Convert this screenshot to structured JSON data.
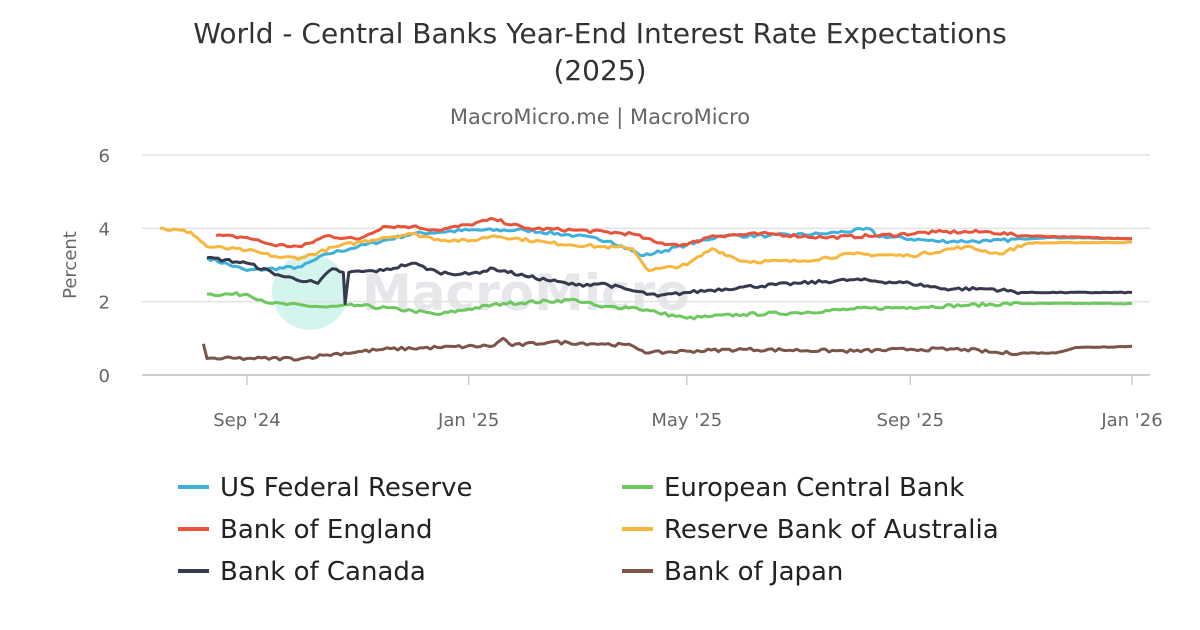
{
  "chart_data": {
    "type": "line",
    "title_line1": "World - Central Banks Year-End Interest Rate Expectations",
    "title_line2": "(2025)",
    "subtitle": "MacroMicro.me | MacroMicro",
    "watermark": "MacroMicro",
    "xlabel": "",
    "ylabel": "Percent",
    "ylim": [
      0,
      6
    ],
    "yticks": [
      0,
      2,
      4,
      6
    ],
    "xlim": [
      "2024-07-10",
      "2026-01-12"
    ],
    "xticks": [
      {
        "date": "2024-09-01",
        "label": "Sep '24"
      },
      {
        "date": "2025-01-01",
        "label": "Jan '25"
      },
      {
        "date": "2025-05-01",
        "label": "May '25"
      },
      {
        "date": "2025-09-01",
        "label": "Sep '25"
      },
      {
        "date": "2026-01-01",
        "label": "Jan '26"
      }
    ],
    "grid": true,
    "legend_position": "bottom",
    "series": [
      {
        "name": "US Federal Reserve",
        "color": "#3fb0dc",
        "points": [
          [
            "2024-08-10",
            3.2
          ],
          [
            "2024-09-01",
            2.85
          ],
          [
            "2024-10-01",
            2.95
          ],
          [
            "2024-10-15",
            3.3
          ],
          [
            "2024-11-01",
            3.5
          ],
          [
            "2024-12-01",
            3.85
          ],
          [
            "2025-01-01",
            3.95
          ],
          [
            "2025-02-01",
            3.95
          ],
          [
            "2025-03-01",
            3.8
          ],
          [
            "2025-03-20",
            3.65
          ],
          [
            "2025-04-07",
            3.25
          ],
          [
            "2025-05-01",
            3.55
          ],
          [
            "2025-05-20",
            3.8
          ],
          [
            "2025-06-15",
            3.8
          ],
          [
            "2025-07-15",
            3.85
          ],
          [
            "2025-08-10",
            3.98
          ],
          [
            "2025-08-13",
            3.8
          ],
          [
            "2025-09-15",
            3.65
          ],
          [
            "2025-10-15",
            3.65
          ],
          [
            "2025-11-15",
            3.75
          ],
          [
            "2026-01-01",
            3.72
          ]
        ]
      },
      {
        "name": "European Central Bank",
        "color": "#6cc95d",
        "points": [
          [
            "2024-08-10",
            2.2
          ],
          [
            "2024-09-01",
            2.2
          ],
          [
            "2024-09-15",
            1.95
          ],
          [
            "2024-10-15",
            1.85
          ],
          [
            "2024-11-01",
            1.9
          ],
          [
            "2024-12-01",
            1.75
          ],
          [
            "2024-12-15",
            1.65
          ],
          [
            "2025-01-01",
            1.8
          ],
          [
            "2025-01-20",
            1.95
          ],
          [
            "2025-03-01",
            2.05
          ],
          [
            "2025-03-15",
            1.85
          ],
          [
            "2025-04-01",
            1.85
          ],
          [
            "2025-04-15",
            1.7
          ],
          [
            "2025-05-01",
            1.55
          ],
          [
            "2025-05-15",
            1.6
          ],
          [
            "2025-06-01",
            1.65
          ],
          [
            "2025-07-01",
            1.7
          ],
          [
            "2025-08-01",
            1.8
          ],
          [
            "2025-09-01",
            1.85
          ],
          [
            "2025-10-01",
            1.9
          ],
          [
            "2025-11-01",
            1.95
          ],
          [
            "2026-01-01",
            1.95
          ]
        ]
      },
      {
        "name": "Bank of England",
        "color": "#e9533b",
        "points": [
          [
            "2024-08-15",
            3.8
          ],
          [
            "2024-09-01",
            3.75
          ],
          [
            "2024-09-15",
            3.55
          ],
          [
            "2024-10-01",
            3.5
          ],
          [
            "2024-10-15",
            3.8
          ],
          [
            "2024-11-01",
            3.7
          ],
          [
            "2024-11-15",
            4.05
          ],
          [
            "2024-12-01",
            4.05
          ],
          [
            "2024-12-15",
            3.95
          ],
          [
            "2025-01-01",
            4.1
          ],
          [
            "2025-01-15",
            4.25
          ],
          [
            "2025-02-01",
            4.0
          ],
          [
            "2025-03-01",
            3.95
          ],
          [
            "2025-04-01",
            3.85
          ],
          [
            "2025-04-15",
            3.6
          ],
          [
            "2025-05-01",
            3.55
          ],
          [
            "2025-05-15",
            3.8
          ],
          [
            "2025-06-15",
            3.85
          ],
          [
            "2025-07-15",
            3.75
          ],
          [
            "2025-08-15",
            3.8
          ],
          [
            "2025-09-15",
            3.9
          ],
          [
            "2025-10-15",
            3.9
          ],
          [
            "2025-11-01",
            3.8
          ],
          [
            "2026-01-01",
            3.72
          ]
        ]
      },
      {
        "name": "Reserve Bank of Australia",
        "color": "#f7b73e",
        "points": [
          [
            "2024-07-15",
            4.0
          ],
          [
            "2024-08-01",
            3.9
          ],
          [
            "2024-08-10",
            3.5
          ],
          [
            "2024-09-01",
            3.4
          ],
          [
            "2024-09-20",
            3.2
          ],
          [
            "2024-10-01",
            3.2
          ],
          [
            "2024-10-20",
            3.5
          ],
          [
            "2024-11-15",
            3.75
          ],
          [
            "2024-12-01",
            3.85
          ],
          [
            "2024-12-15",
            3.7
          ],
          [
            "2025-01-01",
            3.65
          ],
          [
            "2025-01-15",
            3.8
          ],
          [
            "2025-02-15",
            3.6
          ],
          [
            "2025-03-15",
            3.5
          ],
          [
            "2025-04-01",
            3.45
          ],
          [
            "2025-04-10",
            2.85
          ],
          [
            "2025-05-01",
            3.0
          ],
          [
            "2025-05-15",
            3.45
          ],
          [
            "2025-06-01",
            3.1
          ],
          [
            "2025-07-01",
            3.1
          ],
          [
            "2025-08-01",
            3.3
          ],
          [
            "2025-09-01",
            3.25
          ],
          [
            "2025-10-01",
            3.5
          ],
          [
            "2025-10-20",
            3.3
          ],
          [
            "2025-11-05",
            3.6
          ],
          [
            "2026-01-01",
            3.62
          ]
        ]
      },
      {
        "name": "Bank of Canada",
        "color": "#363a4c",
        "points": [
          [
            "2024-08-10",
            3.2
          ],
          [
            "2024-09-01",
            3.05
          ],
          [
            "2024-09-20",
            2.7
          ],
          [
            "2024-10-10",
            2.5
          ],
          [
            "2024-10-18",
            2.9
          ],
          [
            "2024-10-24",
            2.8
          ],
          [
            "2024-10-25",
            1.95
          ],
          [
            "2024-10-27",
            2.8
          ],
          [
            "2024-11-15",
            2.85
          ],
          [
            "2024-12-01",
            3.05
          ],
          [
            "2024-12-15",
            2.8
          ],
          [
            "2025-01-01",
            2.75
          ],
          [
            "2025-01-15",
            2.9
          ],
          [
            "2025-02-01",
            2.7
          ],
          [
            "2025-03-01",
            2.45
          ],
          [
            "2025-03-15",
            2.5
          ],
          [
            "2025-04-01",
            2.3
          ],
          [
            "2025-04-15",
            2.15
          ],
          [
            "2025-05-01",
            2.25
          ],
          [
            "2025-06-01",
            2.4
          ],
          [
            "2025-07-01",
            2.5
          ],
          [
            "2025-08-01",
            2.6
          ],
          [
            "2025-09-01",
            2.5
          ],
          [
            "2025-09-20",
            2.35
          ],
          [
            "2025-10-15",
            2.35
          ],
          [
            "2025-11-01",
            2.25
          ],
          [
            "2026-01-01",
            2.25
          ]
        ]
      },
      {
        "name": "Bank of Japan",
        "color": "#7b5548",
        "points": [
          [
            "2024-08-08",
            0.85
          ],
          [
            "2024-08-10",
            0.45
          ],
          [
            "2024-09-01",
            0.45
          ],
          [
            "2024-10-01",
            0.45
          ],
          [
            "2024-10-15",
            0.55
          ],
          [
            "2024-11-15",
            0.7
          ],
          [
            "2024-12-15",
            0.75
          ],
          [
            "2025-01-15",
            0.8
          ],
          [
            "2025-01-20",
            1.0
          ],
          [
            "2025-01-25",
            0.8
          ],
          [
            "2025-02-15",
            0.9
          ],
          [
            "2025-03-15",
            0.85
          ],
          [
            "2025-04-01",
            0.8
          ],
          [
            "2025-04-10",
            0.6
          ],
          [
            "2025-05-01",
            0.65
          ],
          [
            "2025-06-01",
            0.7
          ],
          [
            "2025-08-01",
            0.65
          ],
          [
            "2025-09-01",
            0.7
          ],
          [
            "2025-10-01",
            0.7
          ],
          [
            "2025-10-20",
            0.6
          ],
          [
            "2025-11-20",
            0.6
          ],
          [
            "2025-12-01",
            0.75
          ],
          [
            "2026-01-01",
            0.78
          ]
        ]
      }
    ]
  }
}
